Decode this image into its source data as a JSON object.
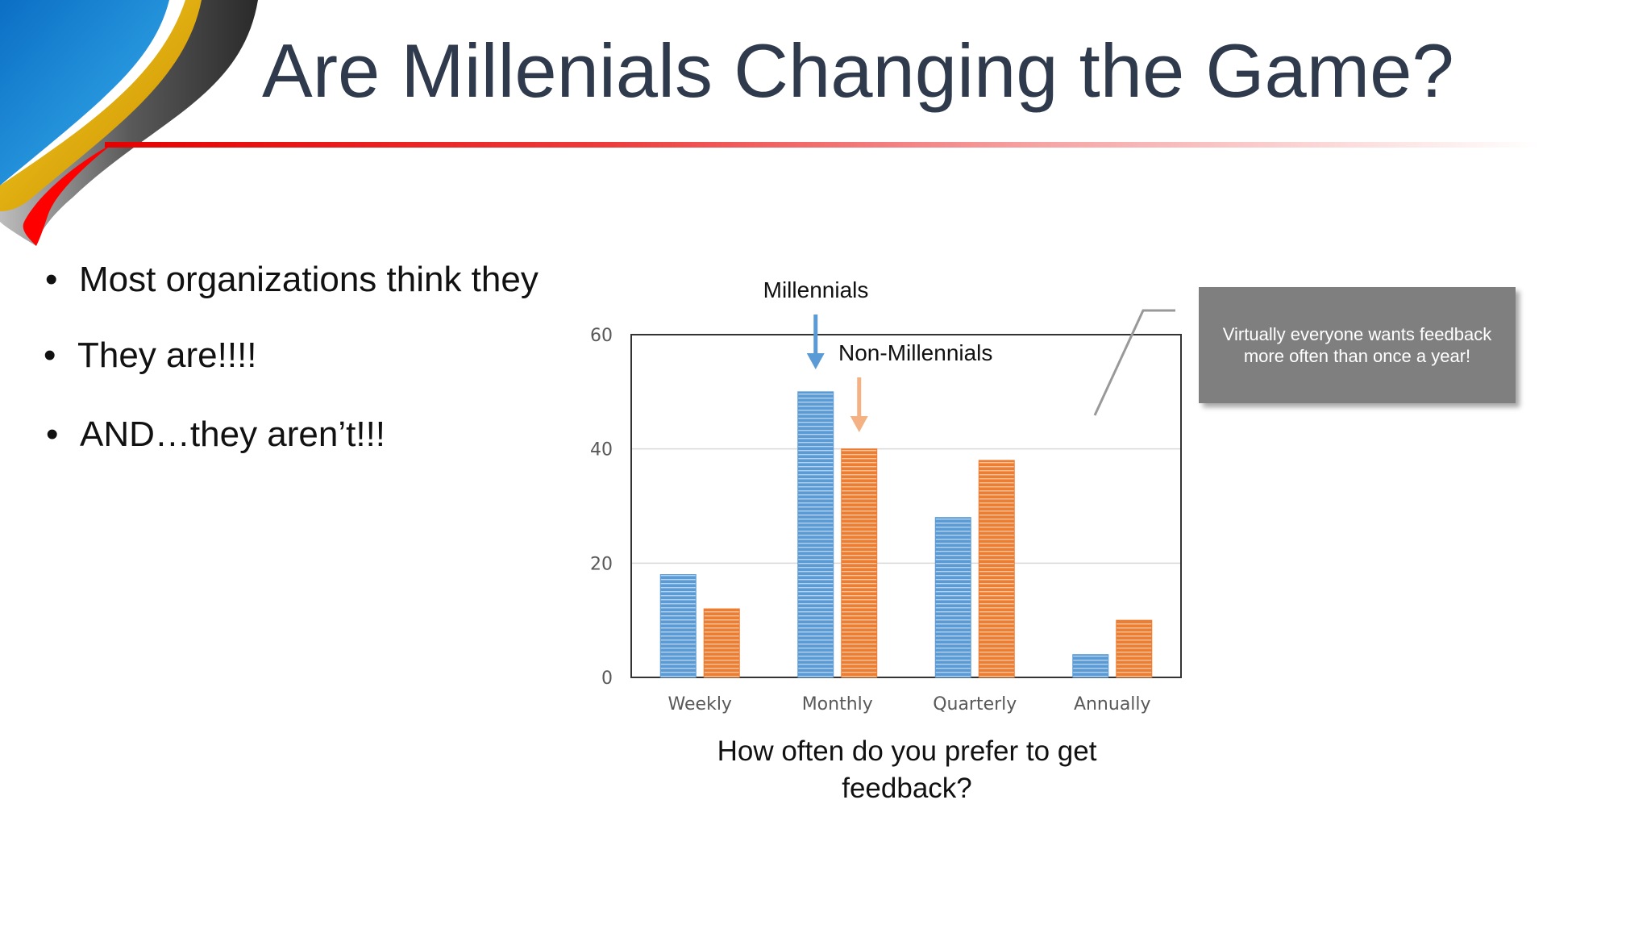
{
  "slide": {
    "title": "Are Millenials Changing the Game?",
    "bullets": [
      {
        "marker": "•",
        "text": "Most organizations think they"
      },
      {
        "marker": "•",
        "text": "They are!!!!"
      },
      {
        "marker": "•",
        "text": "AND…they aren’t!!!"
      }
    ],
    "callout": "Virtually everyone wants feedback more often than once a year!"
  },
  "colors": {
    "title": "#2f3a4d",
    "rule": "#e60000",
    "millennials": "#5b9bd5",
    "non_millennials": "#ed7d31",
    "callout_bg": "#7f7f7f"
  },
  "chart_data": {
    "type": "bar",
    "categories": [
      "Weekly",
      "Monthly",
      "Quarterly",
      "Annually"
    ],
    "series": [
      {
        "name": "Millennials",
        "values": [
          18,
          50,
          28,
          4
        ]
      },
      {
        "name": "Non-Millennials",
        "values": [
          12,
          40,
          38,
          10
        ]
      }
    ],
    "ylim": [
      0,
      60
    ],
    "yticks": [
      0,
      20,
      40,
      60
    ],
    "grid": true,
    "xlabel": "How often do you prefer to get feedback?",
    "ylabel": "",
    "annotations": [
      "Millennials",
      "Non-Millennials"
    ]
  }
}
